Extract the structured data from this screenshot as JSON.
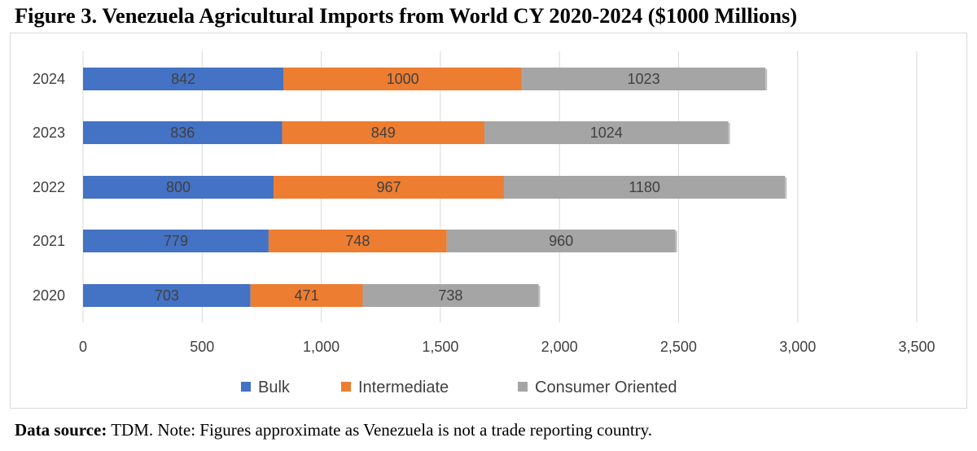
{
  "title": "Figure 3. Venezuela Agricultural Imports from World CY 2020-2024 ($1000 Millions)",
  "footer": {
    "label": "Data source:",
    "text": " TDM. Note: Figures approximate as Venezuela is not a trade reporting country."
  },
  "chart_data": {
    "type": "bar",
    "orientation": "horizontal",
    "stacked": true,
    "title": "Figure 3. Venezuela Agricultural Imports from World CY 2020-2024 ($1000 Millions)",
    "categories": [
      "2024",
      "2023",
      "2022",
      "2021",
      "2020"
    ],
    "series": [
      {
        "name": "Bulk",
        "color": "#4472c4",
        "values": [
          842,
          836,
          800,
          779,
          703
        ]
      },
      {
        "name": "Intermediate",
        "color": "#ed7d31",
        "values": [
          1000,
          849,
          967,
          748,
          471
        ]
      },
      {
        "name": "Consumer Oriented",
        "color": "#a5a5a5",
        "values": [
          1023,
          1024,
          1180,
          960,
          738
        ]
      }
    ],
    "xlim": [
      0,
      3500
    ],
    "xticks": [
      0,
      500,
      1000,
      1500,
      2000,
      2500,
      3000,
      3500
    ],
    "xtick_labels": [
      "0",
      "500",
      "1,000",
      "1,500",
      "2,000",
      "2,500",
      "3,000",
      "3,500"
    ],
    "grid": true,
    "legend_position": "bottom",
    "xlabel": "",
    "ylabel": ""
  }
}
